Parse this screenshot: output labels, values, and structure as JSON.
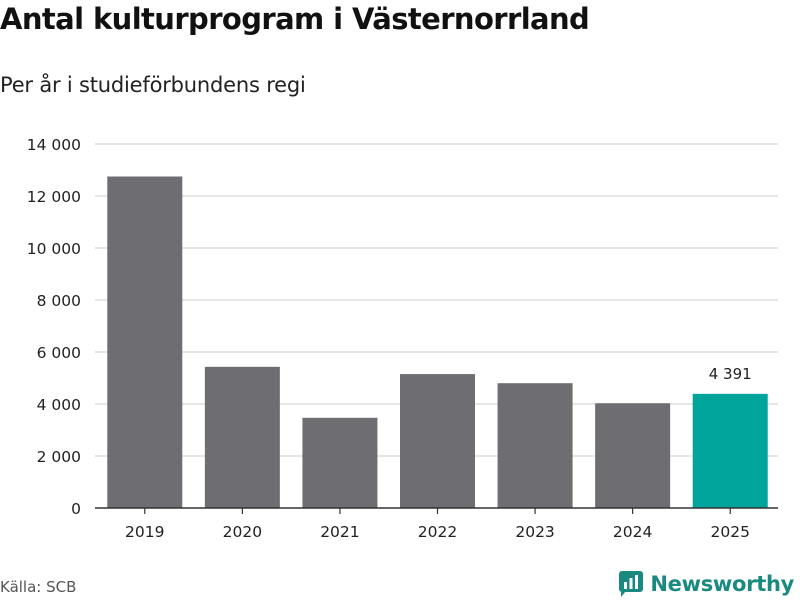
{
  "title": "Antal kulturprogram i Västernorrland",
  "subtitle": "Per år i studieförbundens regi",
  "source": "Källa: SCB",
  "brand": "Newsworthy",
  "colors": {
    "bar": "#6e6d72",
    "highlight": "#00a49a",
    "grid": "#d6d6d6",
    "axis": "#333333",
    "brand": "#1a8a80"
  },
  "chart_data": {
    "type": "bar",
    "title": "Antal kulturprogram i Västernorrland",
    "subtitle": "Per år i studieförbundens regi",
    "xlabel": "",
    "ylabel": "",
    "categories": [
      "2019",
      "2020",
      "2021",
      "2022",
      "2023",
      "2024",
      "2025"
    ],
    "values": [
      12750,
      5430,
      3470,
      5150,
      4800,
      4030,
      4391
    ],
    "highlight_index": 6,
    "data_labels": [
      {
        "index": 6,
        "text": "4 391"
      }
    ],
    "ylim": [
      0,
      14000
    ],
    "yticks": [
      0,
      2000,
      4000,
      6000,
      8000,
      10000,
      12000,
      14000
    ],
    "ytick_labels": [
      "0",
      "2 000",
      "4 000",
      "6 000",
      "8 000",
      "10 000",
      "12 000",
      "14 000"
    ],
    "grid": true
  }
}
